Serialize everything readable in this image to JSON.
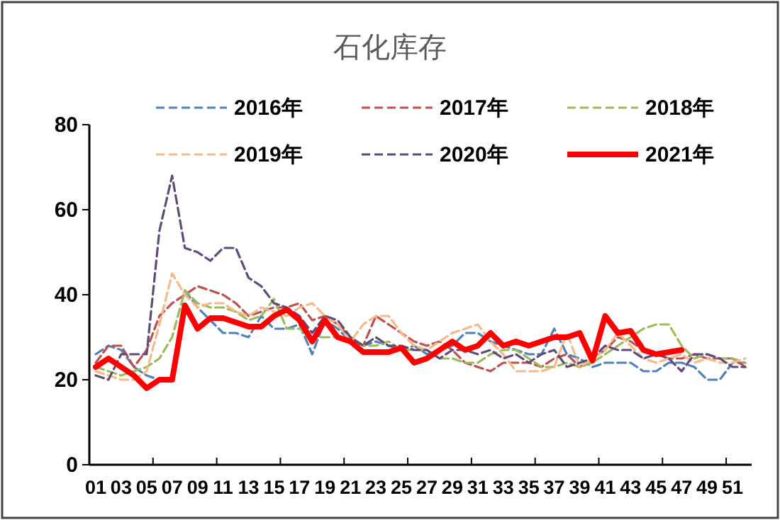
{
  "chart_data": {
    "type": "line",
    "title": "石化库存",
    "categories": [
      "01",
      null,
      "03",
      null,
      "05",
      null,
      "07",
      null,
      "09",
      null,
      "11",
      null,
      "13",
      null,
      "15",
      null,
      "17",
      null,
      "19",
      null,
      "21",
      null,
      "23",
      null,
      "25",
      null,
      "27",
      null,
      "29",
      null,
      "31",
      null,
      "33",
      null,
      "35",
      null,
      "37",
      null,
      "39",
      null,
      "41",
      null,
      "43",
      null,
      "45",
      null,
      "47",
      null,
      "49",
      null,
      "51",
      null
    ],
    "ylim": [
      0,
      80
    ],
    "yticks": [
      0,
      20,
      40,
      60,
      80
    ],
    "grid": false,
    "legend": "top",
    "series": [
      {
        "name": "2016年",
        "color": "#4f81bd",
        "line_style": "dashed",
        "values": [
          26,
          28,
          27,
          23,
          21,
          20,
          null,
          41,
          37,
          34,
          31,
          31,
          30,
          35,
          32,
          32,
          33,
          26,
          34,
          32,
          29,
          28,
          29,
          28,
          27,
          28,
          26,
          27,
          28,
          31,
          31,
          29,
          28,
          27,
          26,
          26,
          32,
          26,
          25,
          23,
          24,
          24,
          24,
          22,
          22,
          24,
          24,
          23,
          20,
          20,
          24,
          24
        ]
      },
      {
        "name": "2017年",
        "color": "#c0504d",
        "line_style": "dashed",
        "values": [
          24,
          28,
          28,
          23,
          27,
          35,
          38,
          40,
          42,
          41,
          40,
          38,
          35,
          36,
          37,
          37,
          38,
          34,
          35,
          33,
          30,
          28,
          35,
          33,
          31,
          29,
          28,
          29,
          27,
          24,
          23,
          22,
          24,
          24,
          24,
          23,
          25,
          26,
          23,
          25,
          27,
          30,
          29,
          27,
          26,
          25,
          25,
          26,
          25,
          25,
          25,
          23
        ]
      },
      {
        "name": "2018年",
        "color": "#9bbb59",
        "line_style": "dashed",
        "values": [
          23,
          22,
          21,
          22,
          23,
          25,
          30,
          41,
          38,
          37,
          37,
          36,
          34,
          35,
          39,
          32,
          32,
          30,
          30,
          30,
          30,
          28,
          28,
          29,
          27,
          27,
          27,
          25,
          25,
          24,
          24,
          26,
          27,
          27,
          25,
          23,
          23,
          24,
          23,
          24,
          26,
          28,
          30,
          32,
          33,
          33,
          28,
          25,
          26,
          25,
          25,
          24
        ]
      },
      {
        "name": "2019年",
        "color": "#f9b88a",
        "line_style": "dashed",
        "values": [
          22,
          21,
          20,
          20,
          22,
          33,
          45,
          40,
          37,
          38,
          38,
          36,
          35,
          37,
          36,
          35,
          37,
          38,
          35,
          33,
          29,
          33,
          35,
          35,
          31,
          28,
          27,
          29,
          31,
          32,
          33,
          29,
          26,
          22,
          22,
          22,
          23,
          31,
          23,
          25,
          27,
          31,
          28,
          25,
          24,
          25,
          26,
          24,
          25,
          24,
          24,
          25
        ]
      },
      {
        "name": "2020年",
        "color": "#604a7b",
        "line_style": "dashed",
        "values": [
          21,
          20,
          26,
          26,
          26,
          55,
          68,
          51,
          50,
          48,
          51,
          51,
          44,
          42,
          38,
          37,
          35,
          31,
          35,
          34,
          30,
          28,
          30,
          28,
          28,
          27,
          27,
          25,
          27,
          27,
          26,
          27,
          25,
          26,
          24,
          26,
          27,
          23,
          24,
          25,
          28,
          27,
          27,
          25,
          26,
          25,
          22,
          26,
          26,
          25,
          23,
          23
        ]
      },
      {
        "name": "2021年",
        "color": "#ff0000",
        "line_style": "solid",
        "values": [
          23,
          25,
          23,
          21,
          18,
          20,
          20,
          37.5,
          32,
          34.5,
          34.5,
          33.5,
          32.5,
          32.5,
          35,
          36.5,
          34,
          29,
          34,
          30,
          29,
          26.5,
          26.5,
          26.5,
          27.5,
          24,
          25,
          27,
          29,
          27,
          28,
          31,
          28,
          29,
          28,
          29,
          30,
          30,
          31,
          24.5,
          35,
          31,
          31.5,
          27,
          26,
          26.5,
          27,
          null,
          null,
          null,
          null,
          null
        ]
      }
    ]
  }
}
